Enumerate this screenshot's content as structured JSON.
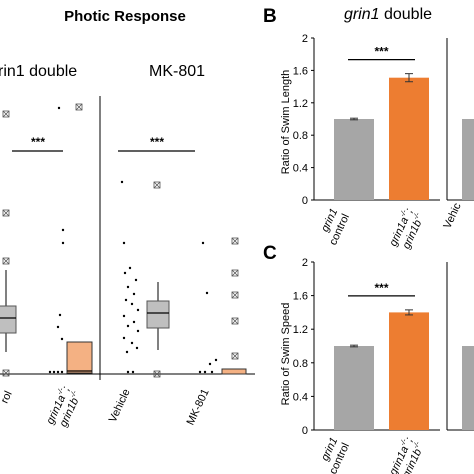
{
  "header": {
    "title": "Photic Response"
  },
  "panel_a": {
    "left_title": "rin1 double",
    "right_title": "MK-801",
    "left_sig": "***",
    "right_sig": "***",
    "left_categories": [
      {
        "l1": "rol",
        "l2": ""
      },
      {
        "l1": "grin1a",
        "l1_sup": "-/-",
        "l1_tail": ";",
        "l2": "grin1b",
        "l2_sup": "-/-"
      }
    ],
    "right_categories": [
      "Vehicle",
      "MK-801"
    ]
  },
  "panel_b": {
    "letter": "B",
    "title_italic": "grin1",
    "title_rest": " double",
    "ylabel": "Ratio of Swim Length",
    "sig": "***",
    "cut_label": "Vehic"
  },
  "panel_c": {
    "letter": "C",
    "ylabel": "Ratio of Swim Speed",
    "sig": "***",
    "cut_label": "Vehic"
  },
  "categories": {
    "control_l1": "grin1",
    "control_l2": "control",
    "mutant_l1": "grin1a",
    "mutant_l1_sup": "-/-",
    "mutant_l1_tail": ";",
    "mutant_l2": "grin1b",
    "mutant_l2_sup": "-/-"
  },
  "colors": {
    "control": "#a6a6a6",
    "mutant": "#ed7d31",
    "box_control": "#bfbfbf",
    "box_mutant": "#f4b183"
  },
  "chart_data": [
    {
      "type": "bar",
      "panel": "B",
      "title": "grin1 double",
      "ylabel": "Ratio of Swim Length",
      "categories": [
        "grin1 control",
        "grin1a-/-; grin1b-/-"
      ],
      "values": [
        1.0,
        1.51
      ],
      "errors": [
        0.01,
        0.05
      ],
      "ylim": [
        0,
        2
      ],
      "yticks": [
        0,
        0.4,
        0.8,
        1.2,
        1.6,
        2
      ]
    },
    {
      "type": "bar",
      "panel": "C",
      "ylabel": "Ratio of Swim Speed",
      "categories": [
        "grin1 control",
        "grin1a-/-; grin1b-/-"
      ],
      "values": [
        1.0,
        1.4
      ],
      "errors": [
        0.01,
        0.03
      ],
      "ylim": [
        0,
        2
      ],
      "yticks": [
        0,
        0.4,
        0.8,
        1.2,
        1.6,
        2
      ]
    }
  ]
}
